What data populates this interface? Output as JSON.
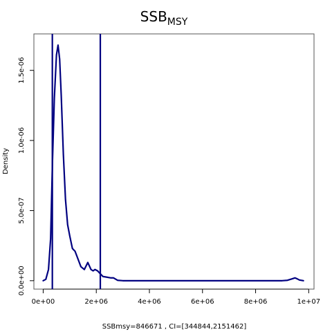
{
  "chart_data": {
    "type": "line",
    "title_main": "SSB",
    "title_sub": "MSY",
    "xlabel": "SSBmsy=846671 , CI=[344844,2151462]",
    "ylabel": "Density",
    "xlim": [
      -350000,
      10200000
    ],
    "ylim": [
      -6e-08,
      1.76e-06
    ],
    "x_ticks": [
      0,
      2000000,
      4000000,
      6000000,
      8000000,
      10000000
    ],
    "x_tick_labels": [
      "0e+00",
      "2e+06",
      "4e+06",
      "6e+06",
      "8e+06",
      "1e+07"
    ],
    "y_ticks": [
      0,
      5e-07,
      1e-06,
      1.5e-06
    ],
    "y_tick_labels": [
      "0.0e+00",
      "5.0e-07",
      "1.0e-06",
      "1.5e-06"
    ],
    "ci_lines": [
      344844,
      2151462
    ],
    "series": [
      {
        "color": "#000080",
        "x": [
          0,
          100000,
          200000,
          280000,
          350000,
          420000,
          500000,
          560000,
          620000,
          680000,
          760000,
          840000,
          920000,
          1000000,
          1100000,
          1200000,
          1300000,
          1420000,
          1550000,
          1680000,
          1800000,
          1880000,
          1950000,
          2050000,
          2150000,
          2250000,
          2400000,
          2550000,
          2650000,
          2800000,
          3000000,
          3500000,
          4000000,
          5000000,
          6000000,
          7000000,
          8000000,
          9000000,
          9200000,
          9350000,
          9480000,
          9550000,
          9650000,
          9800000
        ],
        "y": [
          0,
          1e-08,
          8e-08,
          3e-07,
          8.5e-07,
          1.3e-06,
          1.61e-06,
          1.68e-06,
          1.58e-06,
          1.32e-06,
          9e-07,
          5.8e-07,
          4e-07,
          3.2e-07,
          2.3e-07,
          2.1e-07,
          1.6e-07,
          1e-07,
          8e-08,
          1.3e-07,
          8e-08,
          7e-08,
          8e-08,
          7e-08,
          5e-08,
          3e-08,
          2.5e-08,
          2e-08,
          2e-08,
          3e-09,
          0,
          0,
          0,
          0,
          0,
          0,
          0,
          0,
          3e-09,
          1.2e-08,
          2e-08,
          1.5e-08,
          5e-09,
          0
        ]
      }
    ]
  }
}
